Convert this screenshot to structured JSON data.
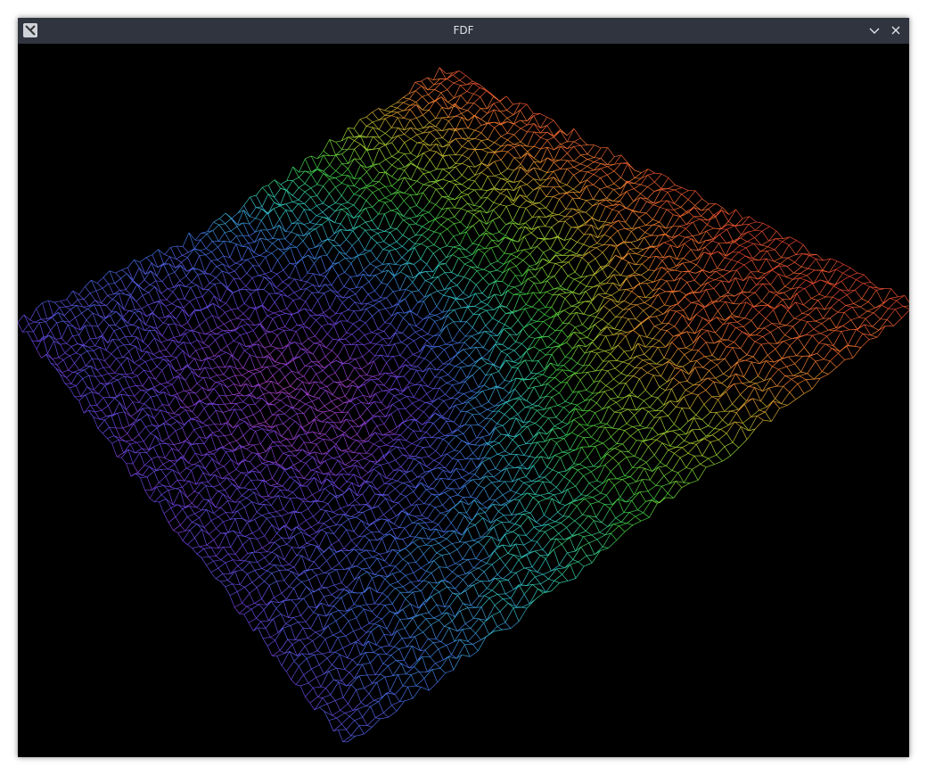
{
  "window": {
    "title": "FDF",
    "app_icon": "x11-logo-icon",
    "controls": [
      "chevron-down-icon",
      "close-icon"
    ]
  },
  "colors": {
    "titlebar": "#2f343f",
    "title_text": "#dfe3e8",
    "canvas_background": "#000000",
    "height_gradient": [
      "#c040c0",
      "#6a3fd8",
      "#3f6fe0",
      "#30c8c0",
      "#40d040",
      "#a8d030",
      "#f08030",
      "#e04030"
    ]
  }
}
